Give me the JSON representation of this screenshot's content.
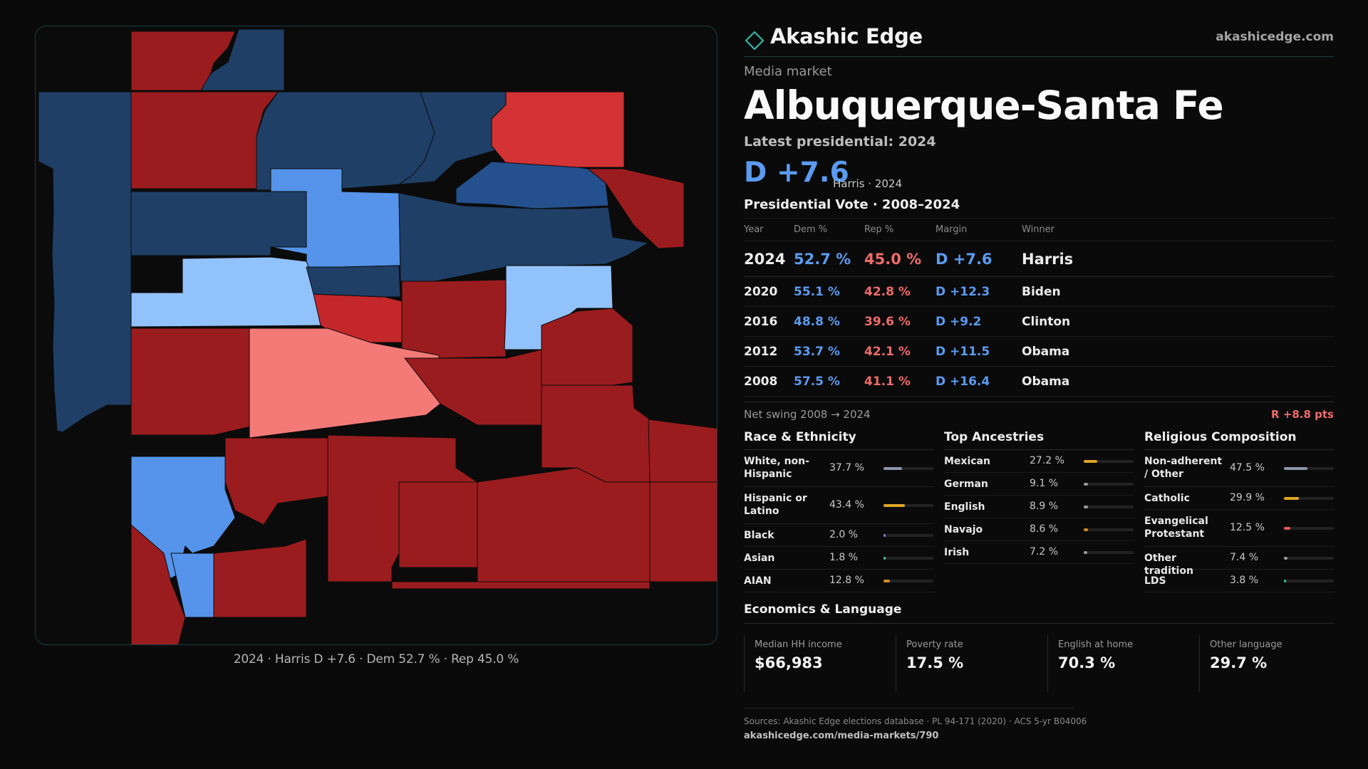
{
  "brand": {
    "name": "Akashic Edge",
    "url": "akashicedge.com"
  },
  "header": {
    "kicker": "Media market",
    "title": "Albuquerque-Santa Fe",
    "latest_label": "Latest presidential: 2024",
    "margin": "D +7.6",
    "winner_line": "Harris · 2024"
  },
  "vote": {
    "heading": "Presidential Vote · 2008–2024",
    "columns": [
      "Year",
      "Dem %",
      "Rep %",
      "Margin",
      "Winner"
    ],
    "rows": [
      {
        "year": "2024",
        "dem": "52.7 %",
        "rep": "45.0 %",
        "margin": "D +7.6",
        "winner": "Harris"
      },
      {
        "year": "2020",
        "dem": "55.1 %",
        "rep": "42.8 %",
        "margin": "D +12.3",
        "winner": "Biden"
      },
      {
        "year": "2016",
        "dem": "48.8 %",
        "rep": "39.6 %",
        "margin": "D +9.2",
        "winner": "Clinton"
      },
      {
        "year": "2012",
        "dem": "53.7 %",
        "rep": "42.1 %",
        "margin": "D +11.5",
        "winner": "Obama"
      },
      {
        "year": "2008",
        "dem": "57.5 %",
        "rep": "41.1 %",
        "margin": "D +16.4",
        "winner": "Obama"
      }
    ],
    "swing_label": "Net swing 2008 → 2024",
    "swing_value": "R +8.8 pts"
  },
  "race": {
    "title": "Race & Ethnicity",
    "items": [
      {
        "label": "White, non-Hispanic",
        "value": "37.7 %",
        "pct": 37.7,
        "color": "#8a95a8"
      },
      {
        "label": "Hispanic or Latino",
        "value": "43.4 %",
        "pct": 43.4,
        "color": "#e0a526"
      },
      {
        "label": "Black",
        "value": "2.0 %",
        "pct": 2.0,
        "color": "#8a7ad0"
      },
      {
        "label": "Asian",
        "value": "1.8 %",
        "pct": 1.8,
        "color": "#3fbfa0"
      },
      {
        "label": "AIAN",
        "value": "12.8 %",
        "pct": 12.8,
        "color": "#d08a2a"
      }
    ]
  },
  "ancestry": {
    "title": "Top Ancestries",
    "items": [
      {
        "label": "Mexican",
        "value": "27.2 %",
        "pct": 27.2,
        "color": "#e0a526"
      },
      {
        "label": "German",
        "value": "9.1 %",
        "pct": 9.1,
        "color": "#9a9a9a"
      },
      {
        "label": "English",
        "value": "8.9 %",
        "pct": 8.9,
        "color": "#9a9a9a"
      },
      {
        "label": "Navajo",
        "value": "8.6 %",
        "pct": 8.6,
        "color": "#d08a2a"
      },
      {
        "label": "Irish",
        "value": "7.2 %",
        "pct": 7.2,
        "color": "#9a9a9a"
      }
    ]
  },
  "religion": {
    "title": "Religious Composition",
    "items": [
      {
        "label": "Non-adherent / Other",
        "value": "47.5 %",
        "pct": 47.5,
        "color": "#8a95a8"
      },
      {
        "label": "Catholic",
        "value": "29.9 %",
        "pct": 29.9,
        "color": "#e0a526"
      },
      {
        "label": "Evangelical Protestant",
        "value": "12.5 %",
        "pct": 12.5,
        "color": "#e05a5a"
      },
      {
        "label": "Other tradition",
        "value": "7.4 %",
        "pct": 7.4,
        "color": "#9a9a9a"
      },
      {
        "label": "LDS",
        "value": "3.8 %",
        "pct": 3.8,
        "color": "#3fbfa0"
      }
    ]
  },
  "econ": {
    "title": "Economics & Language",
    "cells": [
      {
        "label": "Median HH income",
        "value": "$66,983"
      },
      {
        "label": "Poverty rate",
        "value": "17.5 %"
      },
      {
        "label": "English at home",
        "value": "70.3 %"
      },
      {
        "label": "Other language",
        "value": "29.7 %"
      }
    ]
  },
  "map": {
    "caption": "2024 · Harris D +7.6 · Dem 52.7 % · Rep 45.0 %",
    "colors": {
      "dark_red": "#9b1c1e",
      "red": "#c3272a",
      "mid_red": "#d33335",
      "light_red": "#f47a78",
      "dark_blue": "#1f3f66",
      "blue": "#25508e",
      "mid_blue": "#5594ea",
      "light_blue": "#92c2fb"
    }
  },
  "sources": {
    "text": "Sources: Akashic Edge elections database · PL 94-171 (2020) · ACS 5-yr B04006",
    "url": "akashicedge.com/media-markets/790"
  }
}
